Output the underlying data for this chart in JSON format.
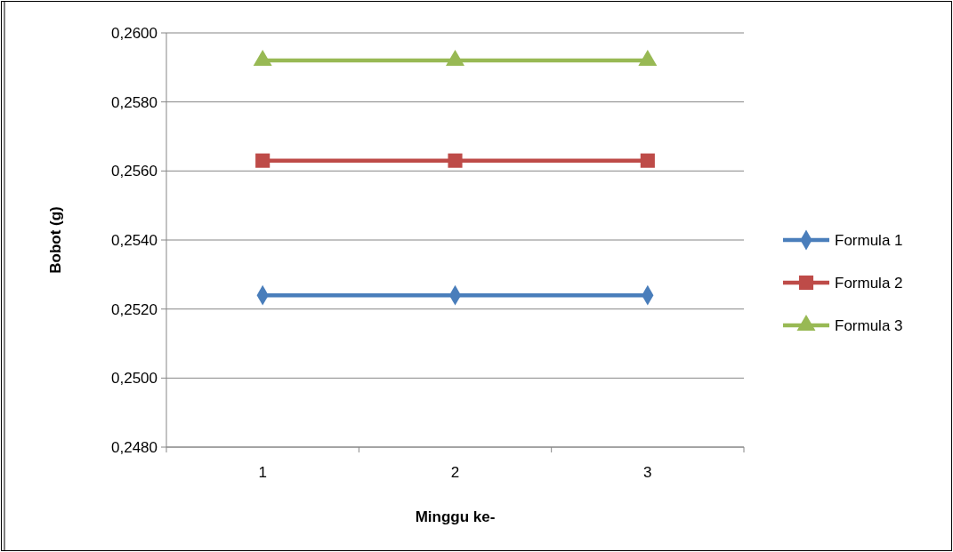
{
  "chart_data": {
    "type": "line",
    "xlabel": "Minggu ke-",
    "ylabel": "Bobot (g)",
    "categories": [
      "1",
      "2",
      "3"
    ],
    "series": [
      {
        "name": "Formula 1",
        "color": "#4a7ebb",
        "marker": "diamond",
        "values": [
          0.2524,
          0.2524,
          0.2524
        ]
      },
      {
        "name": "Formula 2",
        "color": "#be4b48",
        "marker": "square",
        "values": [
          0.2563,
          0.2563,
          0.2563
        ]
      },
      {
        "name": "Formula 3",
        "color": "#98b954",
        "marker": "triangle",
        "values": [
          0.2592,
          0.2592,
          0.2592
        ]
      }
    ],
    "ylim": [
      0.248,
      0.26
    ],
    "yticks": [
      {
        "value": 0.248,
        "label": "0,2480"
      },
      {
        "value": 0.25,
        "label": "0,2500"
      },
      {
        "value": 0.252,
        "label": "0,2520"
      },
      {
        "value": 0.254,
        "label": "0,2540"
      },
      {
        "value": 0.256,
        "label": "0,2560"
      },
      {
        "value": 0.258,
        "label": "0,2580"
      },
      {
        "value": 0.26,
        "label": "0,2600"
      }
    ],
    "grid": "y",
    "legend": "right",
    "line_style": "solid"
  }
}
